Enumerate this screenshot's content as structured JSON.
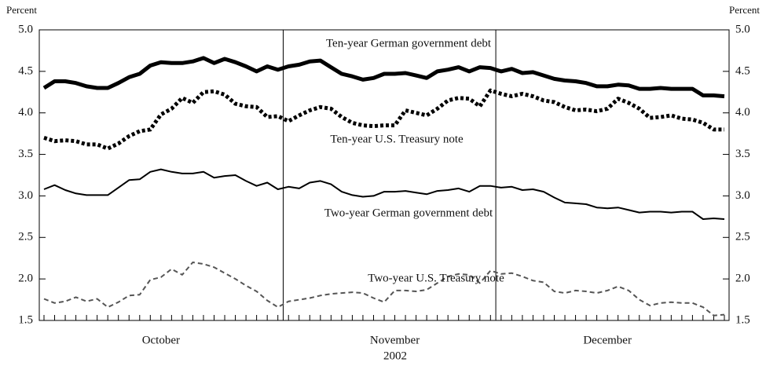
{
  "chart_data": {
    "type": "line",
    "ylabel": "Percent",
    "y2label": "Percent",
    "xlabel": "2002",
    "categories": [
      null,
      null,
      null,
      null,
      null,
      null,
      null,
      null,
      null,
      null,
      null,
      "October",
      null,
      null,
      null,
      null,
      null,
      null,
      null,
      null,
      null,
      null,
      null,
      null,
      null,
      null,
      null,
      null,
      null,
      null,
      null,
      null,
      null,
      "November",
      null,
      null,
      null,
      null,
      null,
      null,
      null,
      null,
      null,
      null,
      null,
      null,
      null,
      null,
      null,
      null,
      null,
      null,
      null,
      "December",
      null,
      null,
      null,
      null,
      null,
      null,
      null,
      null,
      null,
      null,
      null
    ],
    "ylim": [
      1.5,
      5.0
    ],
    "yticks": [
      {
        "value": 1.5,
        "label": "1.5"
      },
      {
        "value": 2,
        "label": "2.0"
      },
      {
        "value": 2.5,
        "label": "2.5"
      },
      {
        "value": 3,
        "label": "3.0"
      },
      {
        "value": 3.5,
        "label": "3.5"
      },
      {
        "value": 4,
        "label": "4.0"
      },
      {
        "value": 4.5,
        "label": "4.5"
      },
      {
        "value": 5,
        "label": "5.0"
      }
    ],
    "y2lim": [
      1.5,
      5.0
    ],
    "y2ticks": [
      {
        "value": 1.5,
        "label": "1.5"
      },
      {
        "value": 2,
        "label": "2.0"
      },
      {
        "value": 2.5,
        "label": "2.5"
      },
      {
        "value": 3,
        "label": "3.0"
      },
      {
        "value": 3.5,
        "label": "3.5"
      },
      {
        "value": 4,
        "label": "4.0"
      },
      {
        "value": 4.5,
        "label": "4.5"
      },
      {
        "value": 5,
        "label": "5.0"
      }
    ],
    "series": [
      {
        "name": "Ten-year German government debt",
        "color": "#000000",
        "values": [
          4.3,
          4.38,
          4.38,
          4.36,
          4.32,
          4.3,
          4.3,
          4.36,
          4.43,
          4.47,
          4.57,
          4.61,
          4.6,
          4.6,
          4.62,
          4.66,
          4.6,
          4.65,
          4.61,
          4.56,
          4.5,
          4.56,
          4.52,
          4.56,
          4.58,
          4.62,
          4.63,
          4.55,
          4.47,
          4.44,
          4.4,
          4.42,
          4.47,
          4.47,
          4.48,
          4.45,
          4.42,
          4.5,
          4.52,
          4.55,
          4.5,
          4.55,
          4.54,
          4.5,
          4.53,
          4.48,
          4.49,
          4.45,
          4.41,
          4.39,
          4.38,
          4.36,
          4.32,
          4.32,
          4.34,
          4.33,
          4.29,
          4.29,
          4.3,
          4.29,
          4.29,
          4.29,
          4.21,
          4.21,
          4.2
        ]
      },
      {
        "name": "Ten-year U.S. Treasury note",
        "color": "#000000",
        "values": [
          3.7,
          3.66,
          3.67,
          3.66,
          3.62,
          3.62,
          3.57,
          3.63,
          3.72,
          3.78,
          3.8,
          3.98,
          4.05,
          4.18,
          4.12,
          4.25,
          4.26,
          4.22,
          4.11,
          4.08,
          4.07,
          3.95,
          3.96,
          3.9,
          3.97,
          4.03,
          4.07,
          4.05,
          3.95,
          3.88,
          3.85,
          3.84,
          3.85,
          3.85,
          4.03,
          4.0,
          3.97,
          4.05,
          4.15,
          4.18,
          4.17,
          4.08,
          4.27,
          4.23,
          4.2,
          4.23,
          4.2,
          4.15,
          4.13,
          4.07,
          4.03,
          4.04,
          4.02,
          4.05,
          4.17,
          4.12,
          4.05,
          3.94,
          3.95,
          3.97,
          3.93,
          3.92,
          3.88,
          3.8,
          3.8
        ]
      },
      {
        "name": "Two-year German government debt",
        "color": "#000000",
        "values": [
          3.08,
          3.13,
          3.07,
          3.03,
          3.01,
          3.01,
          3.01,
          3.1,
          3.19,
          3.2,
          3.29,
          3.32,
          3.29,
          3.27,
          3.27,
          3.29,
          3.22,
          3.24,
          3.25,
          3.18,
          3.12,
          3.16,
          3.08,
          3.11,
          3.09,
          3.16,
          3.18,
          3.14,
          3.05,
          3.01,
          2.99,
          3.0,
          3.05,
          3.05,
          3.06,
          3.04,
          3.02,
          3.06,
          3.07,
          3.09,
          3.05,
          3.12,
          3.12,
          3.1,
          3.11,
          3.07,
          3.08,
          3.05,
          2.98,
          2.92,
          2.91,
          2.9,
          2.86,
          2.85,
          2.86,
          2.83,
          2.8,
          2.81,
          2.81,
          2.8,
          2.81,
          2.81,
          2.72,
          2.73,
          2.72
        ]
      },
      {
        "name": "Two-year U.S. Treasury note",
        "color": "#555555",
        "values": [
          1.76,
          1.71,
          1.73,
          1.78,
          1.73,
          1.76,
          1.66,
          1.72,
          1.8,
          1.81,
          1.99,
          2.02,
          2.12,
          2.05,
          2.2,
          2.18,
          2.14,
          2.07,
          2.0,
          1.92,
          1.85,
          1.74,
          1.66,
          1.73,
          1.75,
          1.77,
          1.8,
          1.82,
          1.83,
          1.84,
          1.83,
          1.77,
          1.72,
          1.86,
          1.86,
          1.85,
          1.87,
          1.95,
          2.03,
          2.06,
          2.05,
          1.95,
          2.1,
          2.06,
          2.07,
          2.03,
          1.98,
          1.96,
          1.85,
          1.83,
          1.86,
          1.85,
          1.83,
          1.86,
          1.91,
          1.86,
          1.75,
          1.68,
          1.71,
          1.72,
          1.71,
          1.71,
          1.66,
          1.56,
          1.57
        ]
      }
    ]
  }
}
